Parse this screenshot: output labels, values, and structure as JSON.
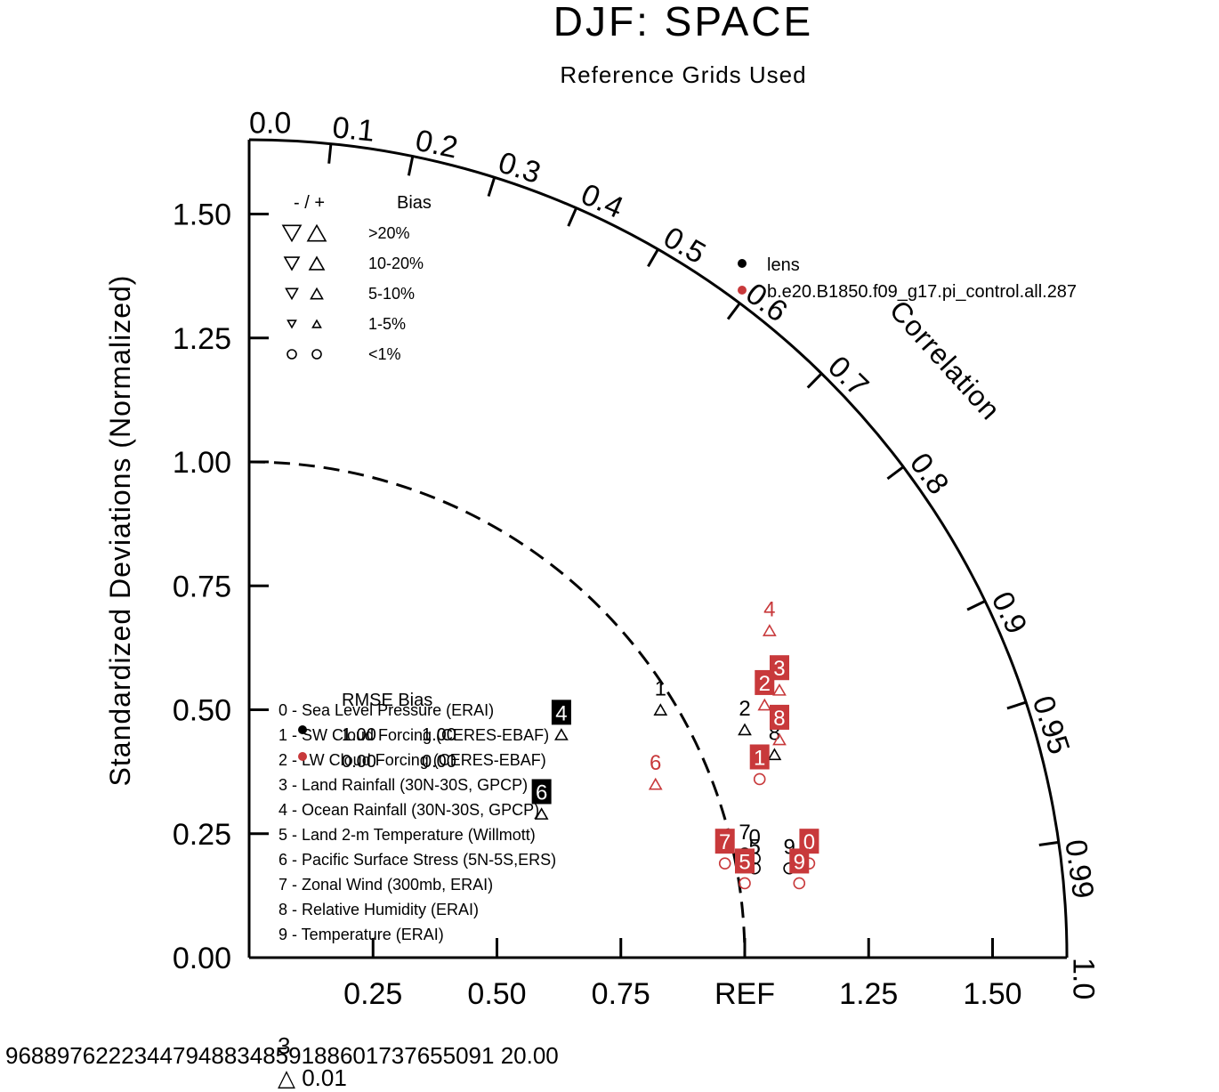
{
  "chart_data": {
    "type": "scatter",
    "subtype": "taylor-diagram",
    "title": "DJF: SPACE",
    "subtitle": "Reference Grids Used",
    "ylabel": "Standardized Deviations (Normalized)",
    "xlabel": "",
    "correlation_label": "Correlation",
    "ref_label": "REF",
    "xlim": [
      0,
      1.65
    ],
    "ylim": [
      0,
      1.65
    ],
    "x_ticks": [
      "0.25",
      "0.50",
      "0.75",
      "REF",
      "1.25",
      "1.50"
    ],
    "x_tick_values": [
      0.25,
      0.5,
      0.75,
      1.0,
      1.25,
      1.5
    ],
    "y_ticks": [
      "0.00",
      "0.25",
      "0.50",
      "0.75",
      "1.00",
      "1.25",
      "1.50"
    ],
    "y_tick_values": [
      0.0,
      0.25,
      0.5,
      0.75,
      1.0,
      1.25,
      1.5
    ],
    "correlation_ticks": [
      "0.0",
      "0.1",
      "0.2",
      "0.3",
      "0.4",
      "0.5",
      "0.6",
      "0.7",
      "0.8",
      "0.9",
      "0.95",
      "0.99",
      "1.0"
    ],
    "correlation_tick_values": [
      0.0,
      0.1,
      0.2,
      0.3,
      0.4,
      0.5,
      0.6,
      0.7,
      0.8,
      0.9,
      0.95,
      0.99,
      1.0
    ],
    "grid": false,
    "cases_legend": [
      {
        "name": "lens",
        "color": "#000000"
      },
      {
        "name": "b.e20.B1850.f09_g17.pi_control.all.287",
        "color": "#c8393b"
      }
    ],
    "bias_legend": {
      "header_sign": "- / +",
      "header_label": "Bias",
      "rows": [
        ">20%",
        "10-20%",
        "5-10%",
        "1-5%",
        "<1%"
      ]
    },
    "variables_legend": [
      "0 - Sea Level Pressure (ERAI)",
      "1 - SW Cloud Forcing (CERES-EBAF)",
      "2 - LW Cloud Forcing (CERES-EBAF)",
      "3 - Land Rainfall (30N-30S, GPCP)",
      "4 - Ocean Rainfall (30N-30S, GPCP)",
      "5 - Land 2-m Temperature (Willmott)",
      "6 - Pacific Surface Stress (5N-5S,ERS)",
      "7 - Zonal Wind (300mb, ERAI)",
      "8 - Relative Humidity (ERAI)",
      "9 - Temperature (ERAI)"
    ],
    "rmse_bias_header": "RMSE Bias",
    "rmse_bias_rows": [
      {
        "rmse": "1.00",
        "bias": "1.00"
      },
      {
        "rmse": "0.00",
        "bias": "0.00"
      }
    ],
    "series": [
      {
        "name": "lens",
        "color": "#000000",
        "points": [
          {
            "id": "0",
            "x": 1.02,
            "y": 0.2,
            "marker": "circle",
            "label_style": "plain"
          },
          {
            "id": "1",
            "x": 0.83,
            "y": 0.5,
            "marker": "triangle",
            "label_style": "plain"
          },
          {
            "id": "2",
            "x": 1.0,
            "y": 0.46,
            "marker": "triangle",
            "label_style": "plain"
          },
          {
            "id": "4",
            "x": 0.63,
            "y": 0.45,
            "marker": "triangle",
            "label_style": "boxed"
          },
          {
            "id": "5",
            "x": 1.02,
            "y": 0.18,
            "marker": "circle",
            "label_style": "plain"
          },
          {
            "id": "6",
            "x": 0.59,
            "y": 0.29,
            "marker": "triangle",
            "label_style": "boxed"
          },
          {
            "id": "7",
            "x": 1.0,
            "y": 0.21,
            "marker": "circle",
            "label_style": "plain"
          },
          {
            "id": "8",
            "x": 1.06,
            "y": 0.41,
            "marker": "triangle",
            "label_style": "plain"
          },
          {
            "id": "9",
            "x": 1.09,
            "y": 0.18,
            "marker": "circle",
            "label_style": "plain"
          }
        ]
      },
      {
        "name": "b.e20.B1850.f09_g17.pi_control.all.287",
        "color": "#c8393b",
        "points": [
          {
            "id": "0",
            "x": 1.13,
            "y": 0.19,
            "marker": "circle",
            "label_style": "boxed"
          },
          {
            "id": "1",
            "x": 1.03,
            "y": 0.36,
            "marker": "circle",
            "label_style": "boxed"
          },
          {
            "id": "2",
            "x": 1.04,
            "y": 0.51,
            "marker": "triangle",
            "label_style": "boxed"
          },
          {
            "id": "3",
            "x": 1.07,
            "y": 0.54,
            "marker": "triangle",
            "label_style": "boxed"
          },
          {
            "id": "4",
            "x": 1.05,
            "y": 0.66,
            "marker": "triangle",
            "label_style": "plain"
          },
          {
            "id": "5",
            "x": 1.0,
            "y": 0.15,
            "marker": "circle",
            "label_style": "boxed"
          },
          {
            "id": "6",
            "x": 0.82,
            "y": 0.35,
            "marker": "triangle",
            "label_style": "plain"
          },
          {
            "id": "7",
            "x": 0.96,
            "y": 0.19,
            "marker": "circle",
            "label_style": "boxed"
          },
          {
            "id": "8",
            "x": 1.07,
            "y": 0.44,
            "marker": "triangle",
            "label_style": "boxed"
          },
          {
            "id": "9",
            "x": 1.11,
            "y": 0.15,
            "marker": "circle",
            "label_style": "boxed"
          }
        ]
      }
    ],
    "footer_text": "96889762223447948834859188601737655091 20.00",
    "footer_small_text": "3",
    "footer_sub_text": "△ 0.01"
  }
}
